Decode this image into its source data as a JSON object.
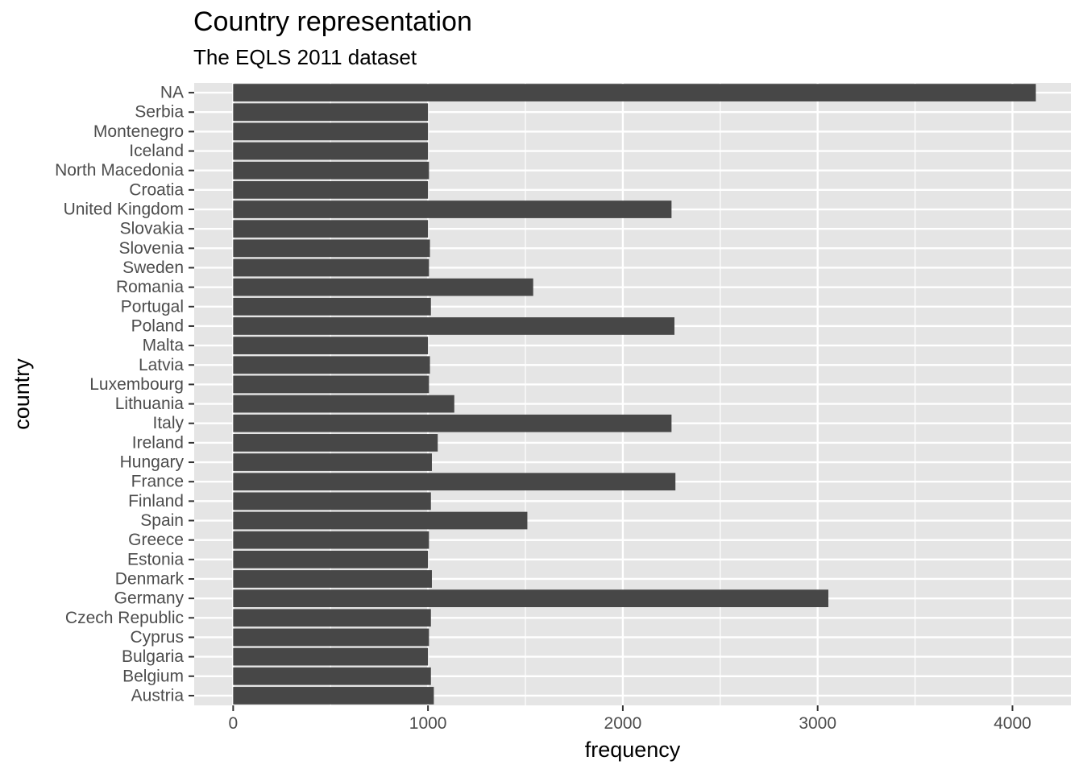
{
  "chart_data": {
    "type": "bar",
    "orientation": "horizontal",
    "title": "Country representation",
    "subtitle": "The EQLS 2011 dataset",
    "xlabel": "frequency",
    "ylabel": "country",
    "xlim": [
      -200,
      4300
    ],
    "xticks": [
      0,
      1000,
      2000,
      3000,
      4000
    ],
    "grid": true,
    "categories": [
      "NA",
      "Serbia",
      "Montenegro",
      "Iceland",
      "North Macedonia",
      "Croatia",
      "United Kingdom",
      "Slovakia",
      "Slovenia",
      "Sweden",
      "Romania",
      "Portugal",
      "Poland",
      "Malta",
      "Latvia",
      "Luxembourg",
      "Lithuania",
      "Italy",
      "Ireland",
      "Hungary",
      "France",
      "Finland",
      "Spain",
      "Greece",
      "Estonia",
      "Denmark",
      "Germany",
      "Czech Republic",
      "Cyprus",
      "Bulgaria",
      "Belgium",
      "Austria"
    ],
    "values": [
      4120,
      1000,
      1000,
      1000,
      1005,
      1000,
      2250,
      1000,
      1010,
      1005,
      1540,
      1015,
      2265,
      1000,
      1010,
      1005,
      1135,
      2250,
      1050,
      1020,
      2270,
      1015,
      1510,
      1005,
      1000,
      1020,
      3055,
      1015,
      1005,
      1000,
      1015,
      1030
    ],
    "colors": {
      "bar": "#474747",
      "panel": "#e5e5e5",
      "grid": "#ffffff",
      "tick": "#333333"
    }
  }
}
